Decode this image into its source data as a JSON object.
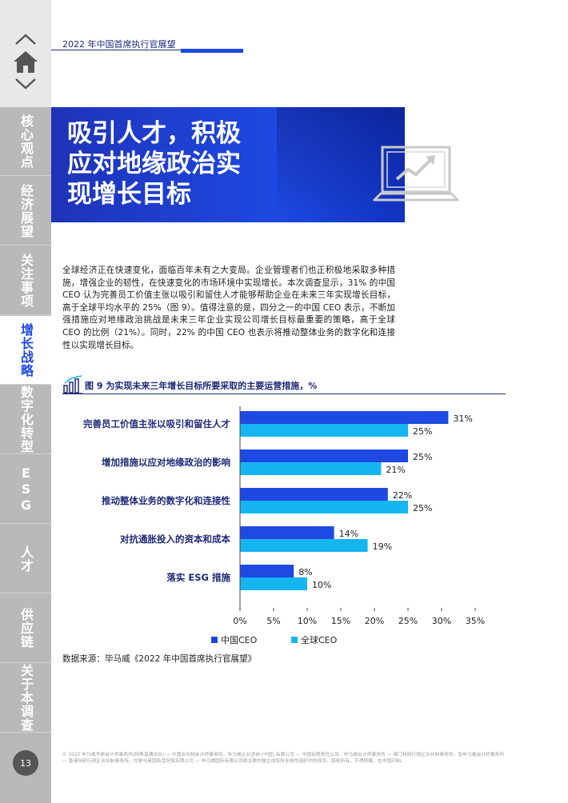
{
  "header": {
    "running_title": "2022 年中国首席执行官展望"
  },
  "sidebar": {
    "home_icon": "home-icon",
    "items": [
      {
        "label": "核心观点",
        "active": false
      },
      {
        "label": "经济展望",
        "active": false
      },
      {
        "label": "关注事项",
        "active": false
      },
      {
        "label": "增长战略",
        "active": true
      },
      {
        "label": "数字化转型",
        "active": false
      },
      {
        "label": "ESG",
        "active": false
      },
      {
        "label": "人才",
        "active": false
      },
      {
        "label": "供应链",
        "active": false
      },
      {
        "label": "关于本调查",
        "active": false
      }
    ],
    "page_number": "13"
  },
  "banner": {
    "title_lines": [
      "吸引人才，积极",
      "应对地缘政治实",
      "现增长目标"
    ],
    "icon": "laptop-chart-icon"
  },
  "body_text": "全球经济正在快速变化，面临百年未有之大变局。企业管理者们也正积极地采取多种措施，增强企业的韧性，在快速变化的市场环境中实现增长。本次调查显示，31% 的中国 CEO 认为完善员工价值主张以吸引和留住人才能够帮助企业在未来三年实现增长目标，高于全球平均水平的 25%（图 9）。值得注意的是，四分之一的中国 CEO 表示，不断加强措施应对地缘政治挑战是未来三年企业实现公司增长目标最重要的策略，高于全球 CEO 的比例（21%）。同时，22% 的中国 CEO 也表示将推动整体业务的数字化和连接性以实现增长目标。",
  "figure": {
    "title": "图 9  为实现未来三年增长目标所要采取的主要运营措施，%",
    "icon": "bar-chart-icon",
    "source": "数据来源：毕马威《2022 年中国首席执行官展望》"
  },
  "chart_data": {
    "type": "bar",
    "orientation": "horizontal",
    "categories": [
      "完善员工价值主张以吸引和留住人才",
      "增加措施以应对地缘政治的影响",
      "推动整体业务的数字化和连接性",
      "对抗通胀投入的资本和成本",
      "落实 ESG 措施"
    ],
    "series": [
      {
        "name": "中国CEO",
        "values": [
          31,
          25,
          22,
          14,
          8
        ],
        "color": "#1e49e2"
      },
      {
        "name": "全球CEO",
        "values": [
          25,
          21,
          25,
          19,
          10
        ],
        "color": "#15b6f0"
      }
    ],
    "data_labels": [
      [
        "31%",
        "25%",
        "22%",
        "14%",
        "8%"
      ],
      [
        "25%",
        "21%",
        "25%",
        "19%",
        "10%"
      ]
    ],
    "x_ticks": [
      "0%",
      "5%",
      "10%",
      "15%",
      "20%",
      "25%",
      "30%",
      "35%"
    ],
    "xlim": [
      0,
      35
    ],
    "grid": false,
    "legend_position": "bottom-left"
  },
  "footer": "© 2022 毕马威华振会计师事务所(特殊普通合伙) — 中国合伙制会计师事务所，毕马威企业咨询 (中国) 有限公司 — 中国有限责任公司，毕马威会计师事务所 — 澳门特别行政区合伙制事务所，及毕马威会计师事务所 — 香港特别行政区合伙制事务所，均是与英国私营担保有限公司 — 毕马威国际有限公司相关联的独立成员所全球性组织中的成员。版权所有，不得转载。在中国印制。"
}
